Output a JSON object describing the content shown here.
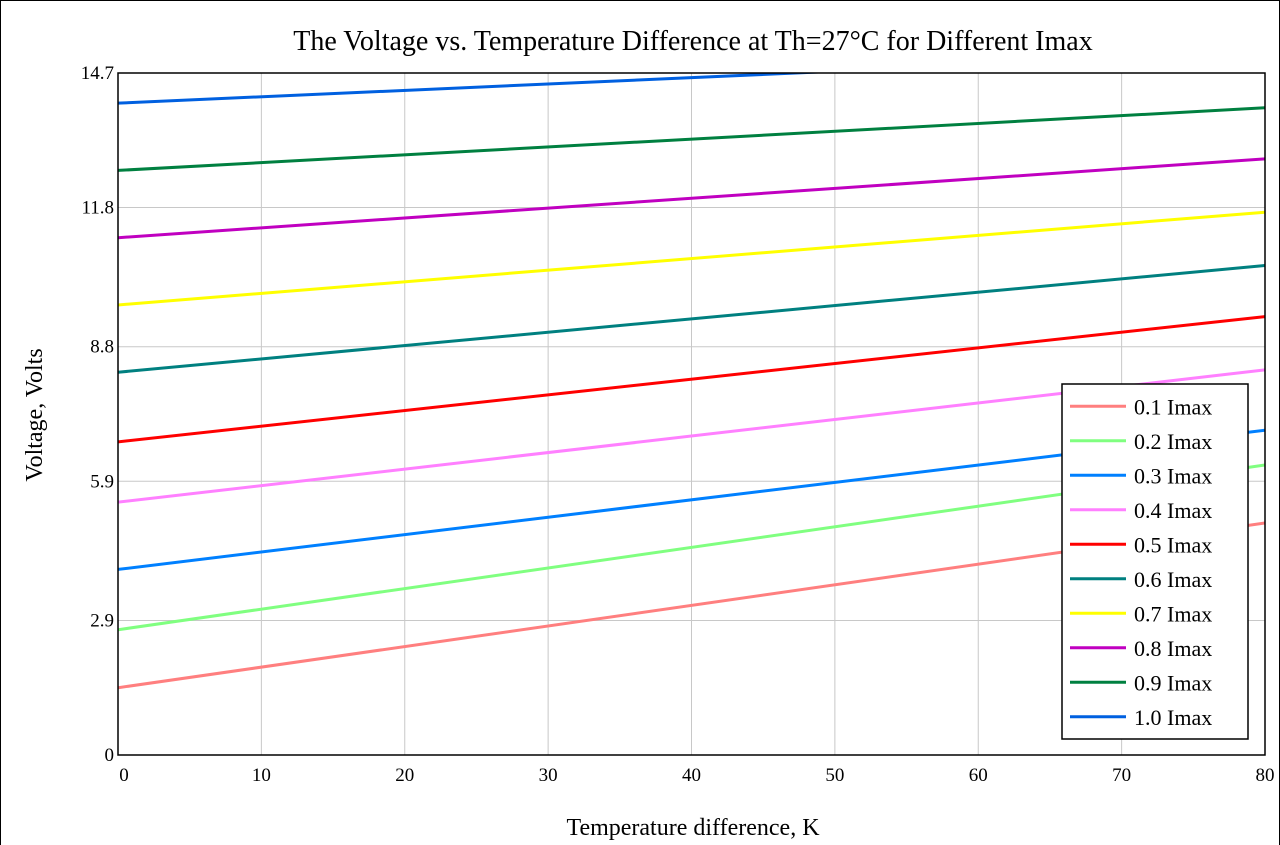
{
  "chart_data": {
    "type": "line",
    "title": "The Voltage vs. Temperature Difference at Th=27°C for Different Imax",
    "xlabel": "Temperature difference, K",
    "ylabel": "Voltage, Volts",
    "xlim": [
      0,
      80
    ],
    "ylim": [
      0,
      14.7
    ],
    "xticks": [
      "0",
      "10",
      "20",
      "30",
      "40",
      "50",
      "60",
      "70",
      "80"
    ],
    "yticks": [
      "0",
      "2.9",
      "5.9",
      "8.8",
      "11.8",
      "14.7"
    ],
    "grid": true,
    "legend_position": "bottom-right",
    "x": [
      0,
      80
    ],
    "series": [
      {
        "name": "0.1 Imax",
        "color": "#ff7f7f",
        "values": [
          1.45,
          5.0
        ]
      },
      {
        "name": "0.2 Imax",
        "color": "#80ff80",
        "values": [
          2.7,
          6.25
        ]
      },
      {
        "name": "0.3 Imax",
        "color": "#0080ff",
        "values": [
          4.0,
          7.0
        ]
      },
      {
        "name": "0.4 Imax",
        "color": "#ff80ff",
        "values": [
          5.45,
          8.3
        ]
      },
      {
        "name": "0.5 Imax",
        "color": "#ff0000",
        "values": [
          6.75,
          9.45
        ]
      },
      {
        "name": "0.6 Imax",
        "color": "#008080",
        "values": [
          8.25,
          10.55
        ]
      },
      {
        "name": "0.7 Imax",
        "color": "#ffff00",
        "values": [
          9.7,
          11.7
        ]
      },
      {
        "name": "0.8 Imax",
        "color": "#c000c0",
        "values": [
          11.15,
          12.85
        ]
      },
      {
        "name": "0.9 Imax",
        "color": "#008040",
        "values": [
          12.6,
          13.95
        ]
      },
      {
        "name": "1.0 Imax",
        "color": "#0060e0",
        "values": [
          14.05,
          15.15
        ]
      }
    ]
  }
}
